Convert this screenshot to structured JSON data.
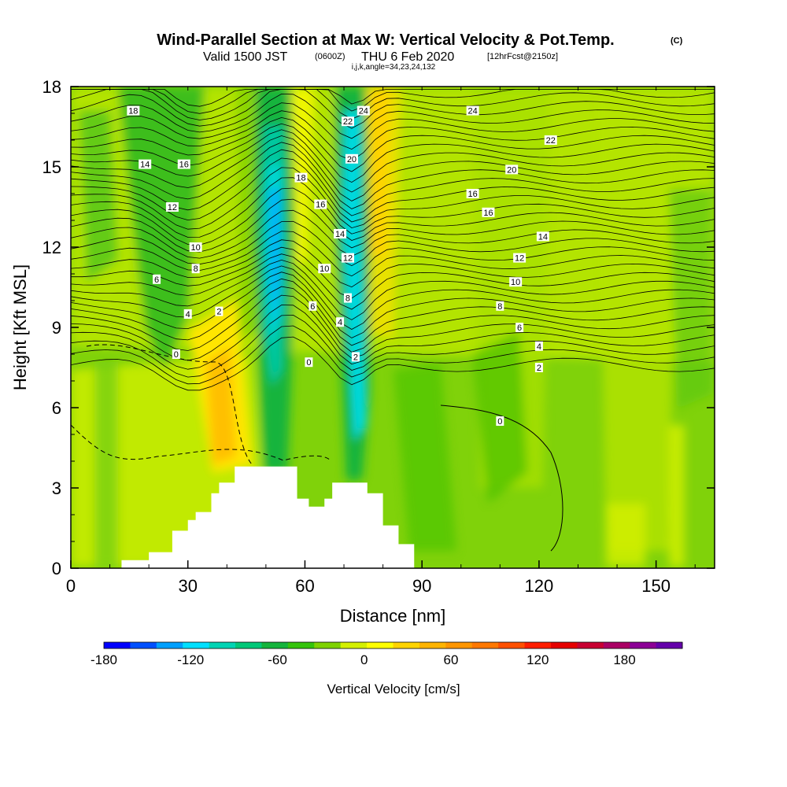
{
  "chart_data": {
    "type": "heatmap",
    "title": "Wind-Parallel Section at Max W: Vertical Velocity & Pot.Temp.",
    "copyright": "(C)",
    "subtitle_valid": "Valid 1500 JST",
    "subtitle_utc": "(0600Z)",
    "subtitle_date": "THU 6 Feb 2020",
    "subtitle_fcst": "[12hrFcst@2150z]",
    "subtitle_ijk": "i,j,k,angle=34,23,24,132",
    "xlabel": "Distance [nm]",
    "ylabel": "Height [Kft MSL]",
    "xlim": [
      0,
      165
    ],
    "ylim": [
      0,
      18
    ],
    "xticks": [
      "0",
      "30",
      "60",
      "90",
      "120",
      "150"
    ],
    "yticks": [
      "0",
      "3",
      "6",
      "9",
      "12",
      "15",
      "18"
    ],
    "colorbar": {
      "label": "Vertical Velocity [cm/s]",
      "ticks": [
        "-180",
        "-120",
        "-60",
        "0",
        "60",
        "120",
        "180"
      ],
      "colors": [
        "#0000ff",
        "#0050ff",
        "#00a0ff",
        "#00e0ff",
        "#00d4b4",
        "#00c878",
        "#14b43c",
        "#34c40c",
        "#7ed200",
        "#d4f000",
        "#ffff00",
        "#ffd400",
        "#ffb400",
        "#ff9600",
        "#ff7800",
        "#ff5000",
        "#ff1e00",
        "#e60000",
        "#c80032",
        "#aa0064",
        "#8c0096",
        "#6400aa"
      ]
    },
    "terrain": [
      [
        13,
        0.3
      ],
      [
        20,
        0.6
      ],
      [
        26,
        1.4
      ],
      [
        30,
        1.8
      ],
      [
        32,
        2.1
      ],
      [
        36,
        2.8
      ],
      [
        38,
        3.2
      ],
      [
        42,
        3.8
      ],
      [
        55,
        3.8
      ],
      [
        58,
        2.6
      ],
      [
        61,
        2.3
      ],
      [
        65,
        2.6
      ],
      [
        67,
        3.2
      ],
      [
        72,
        3.2
      ],
      [
        76,
        2.8
      ],
      [
        80,
        1.6
      ],
      [
        84,
        0.9
      ],
      [
        88,
        0.3
      ]
    ],
    "theta_labels": [
      {
        "t": "18",
        "x": 16,
        "y": 17.1
      },
      {
        "t": "14",
        "x": 19,
        "y": 15.1
      },
      {
        "t": "16",
        "x": 29,
        "y": 15.1
      },
      {
        "t": "12",
        "x": 26,
        "y": 13.5
      },
      {
        "t": "10",
        "x": 32,
        "y": 12.0
      },
      {
        "t": "8",
        "x": 32,
        "y": 11.2
      },
      {
        "t": "6",
        "x": 22,
        "y": 10.8
      },
      {
        "t": "4",
        "x": 30,
        "y": 9.5
      },
      {
        "t": "2",
        "x": 38,
        "y": 9.6
      },
      {
        "t": "0",
        "x": 27,
        "y": 8.0
      },
      {
        "t": "22",
        "x": 71,
        "y": 16.7
      },
      {
        "t": "24",
        "x": 75,
        "y": 17.1
      },
      {
        "t": "20",
        "x": 72,
        "y": 15.3
      },
      {
        "t": "18",
        "x": 59,
        "y": 14.6
      },
      {
        "t": "16",
        "x": 64,
        "y": 13.6
      },
      {
        "t": "14",
        "x": 69,
        "y": 12.5
      },
      {
        "t": "12",
        "x": 71,
        "y": 11.6
      },
      {
        "t": "10",
        "x": 65,
        "y": 11.2
      },
      {
        "t": "6",
        "x": 62,
        "y": 9.8
      },
      {
        "t": "8",
        "x": 71,
        "y": 10.1
      },
      {
        "t": "4",
        "x": 69,
        "y": 9.2
      },
      {
        "t": "2",
        "x": 73,
        "y": 7.9
      },
      {
        "t": "0",
        "x": 61,
        "y": 7.7
      },
      {
        "t": "24",
        "x": 103,
        "y": 17.1
      },
      {
        "t": "22",
        "x": 123,
        "y": 16.0
      },
      {
        "t": "20",
        "x": 113,
        "y": 14.9
      },
      {
        "t": "16",
        "x": 103,
        "y": 14.0
      },
      {
        "t": "16",
        "x": 107,
        "y": 13.3
      },
      {
        "t": "14",
        "x": 121,
        "y": 12.4
      },
      {
        "t": "12",
        "x": 115,
        "y": 11.6
      },
      {
        "t": "10",
        "x": 114,
        "y": 10.7
      },
      {
        "t": "8",
        "x": 110,
        "y": 9.8
      },
      {
        "t": "6",
        "x": 115,
        "y": 9.0
      },
      {
        "t": "4",
        "x": 120,
        "y": 8.3
      },
      {
        "t": "2",
        "x": 120,
        "y": 7.5
      },
      {
        "t": "0",
        "x": 110,
        "y": 5.5
      }
    ]
  }
}
